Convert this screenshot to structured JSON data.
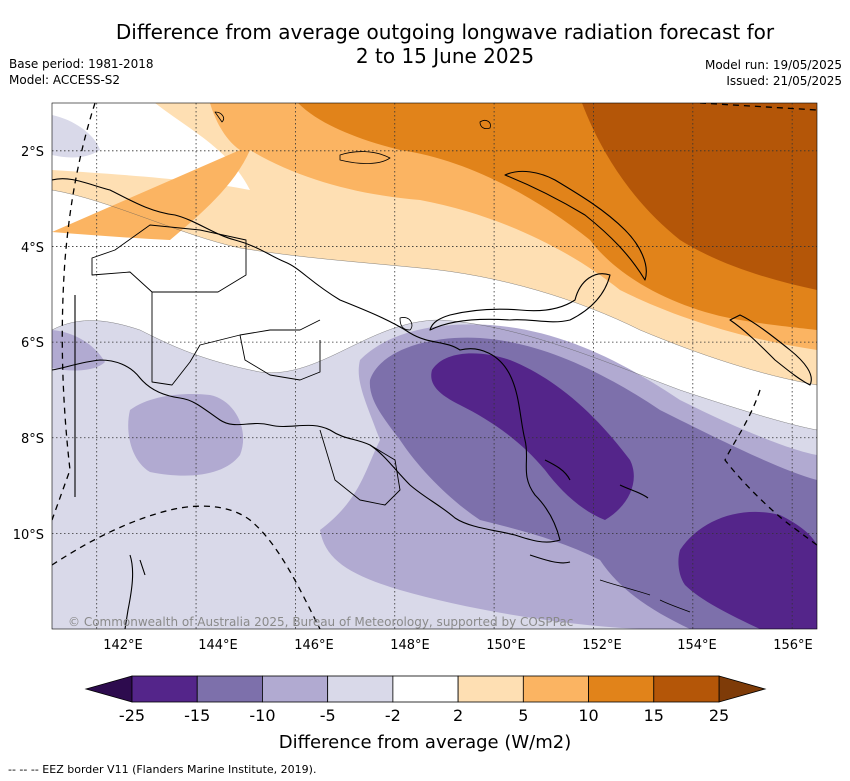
{
  "title_line1": "Difference from average outgoing longwave radiation forecast for",
  "title_line2": "2 to 15 June 2025",
  "meta_left": [
    "Base period: 1981-2018",
    "Model: ACCESS-S2"
  ],
  "meta_right": [
    "Model run: 19/05/2025",
    "Issued: 21/05/2025"
  ],
  "map": {
    "lat_ticks": [
      {
        "value": -2,
        "label": "2°S"
      },
      {
        "value": -4,
        "label": "4°S"
      },
      {
        "value": -6,
        "label": "6°S"
      },
      {
        "value": -8,
        "label": "8°S"
      },
      {
        "value": -10,
        "label": "10°S"
      }
    ],
    "lon_ticks": [
      {
        "value": 142,
        "label": "142°E"
      },
      {
        "value": 144,
        "label": "144°E"
      },
      {
        "value": 146,
        "label": "146°E"
      },
      {
        "value": 148,
        "label": "148°E"
      },
      {
        "value": 150,
        "label": "150°E"
      },
      {
        "value": 152,
        "label": "152°E"
      },
      {
        "value": 154,
        "label": "154°E"
      },
      {
        "value": 156,
        "label": "156°E"
      }
    ],
    "lon_range": [
      141.1,
      156.5
    ],
    "lat_range": [
      -12.0,
      -1.0
    ],
    "copyright": "© Commonwealth of Australia 2025, Bureau of Meteorology, supported by COSPPac",
    "gridlines": true
  },
  "colorbar": {
    "tick_labels": [
      "-25",
      "-15",
      "-10",
      "-5",
      "-2",
      "2",
      "5",
      "10",
      "15",
      "25"
    ],
    "bins": [
      {
        "range": "-25 to -15",
        "color": "#54258a"
      },
      {
        "range": "-15 to -10",
        "color": "#7d70ab"
      },
      {
        "range": "-10 to -5",
        "color": "#b1aad1"
      },
      {
        "range": "-5 to -2",
        "color": "#d9d9e9"
      },
      {
        "range": "-2 to 2",
        "color": "#ffffff"
      },
      {
        "range": "2 to 5",
        "color": "#fedfb3"
      },
      {
        "range": "5 to 10",
        "color": "#fbb462"
      },
      {
        "range": "10 to 15",
        "color": "#e1831a"
      },
      {
        "range": "15 to 25",
        "color": "#b45608"
      }
    ],
    "under_color": "#2d0b4e",
    "over_color": "#7e3b08",
    "label": "Difference from average (W/m2)"
  },
  "footer": "--  --  -- EEZ border V11 (Flanders Marine Institute, 2019)."
}
